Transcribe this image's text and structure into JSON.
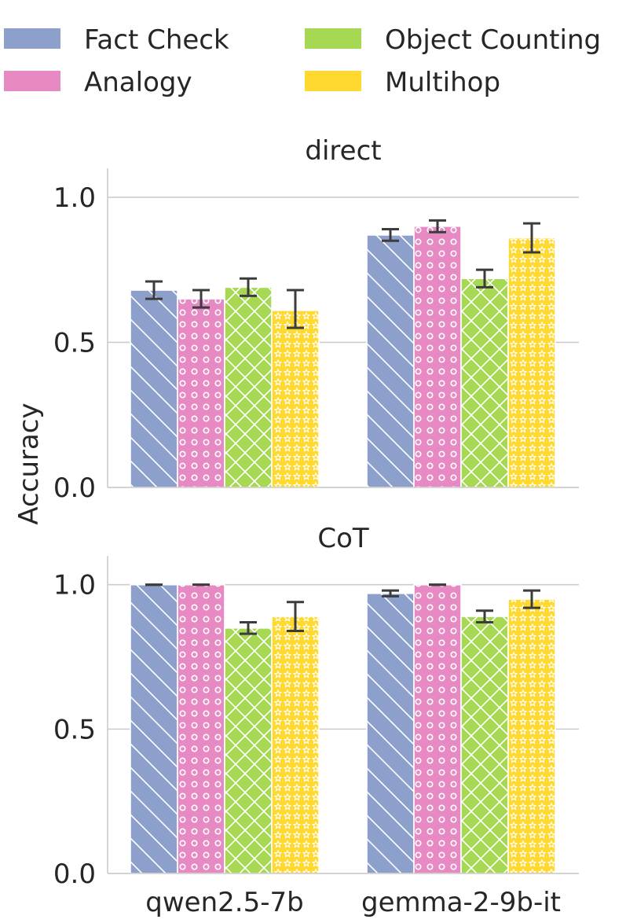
{
  "chart_data": [
    {
      "type": "bar",
      "title": "direct",
      "ylabel": "Accuracy",
      "xlabel": "",
      "ylim": [
        0,
        1.1
      ],
      "yticks": [
        "0.0",
        "0.5",
        "1.0"
      ],
      "grid": true,
      "legend_position": "top",
      "categories": [
        "qwen2.5-7b",
        "gemma-2-9b-it"
      ],
      "series": [
        {
          "name": "Fact Check",
          "color": "#8da0cb",
          "hatch": "diagonal",
          "values": [
            0.68,
            0.87
          ],
          "err_low": [
            0.65,
            0.85
          ],
          "err_high": [
            0.71,
            0.89
          ]
        },
        {
          "name": "Analogy",
          "color": "#e78ac3",
          "hatch": "circles",
          "values": [
            0.65,
            0.9
          ],
          "err_low": [
            0.62,
            0.88
          ],
          "err_high": [
            0.68,
            0.92
          ]
        },
        {
          "name": "Object Counting",
          "color": "#a6d854",
          "hatch": "crosshatch",
          "values": [
            0.69,
            0.72
          ],
          "err_low": [
            0.66,
            0.69
          ],
          "err_high": [
            0.72,
            0.75
          ]
        },
        {
          "name": "Multihop",
          "color": "#ffd92f",
          "hatch": "stars",
          "values": [
            0.61,
            0.86
          ],
          "err_low": [
            0.55,
            0.81
          ],
          "err_high": [
            0.68,
            0.91
          ]
        }
      ]
    },
    {
      "type": "bar",
      "title": "CoT",
      "ylabel": "Accuracy",
      "xlabel": "",
      "ylim": [
        0,
        1.1
      ],
      "yticks": [
        "0.0",
        "0.5",
        "1.0"
      ],
      "grid": true,
      "categories": [
        "qwen2.5-7b",
        "gemma-2-9b-it"
      ],
      "series": [
        {
          "name": "Fact Check",
          "color": "#8da0cb",
          "hatch": "diagonal",
          "values": [
            1.0,
            0.97
          ],
          "err_low": [
            1.0,
            0.96
          ],
          "err_high": [
            1.0,
            0.98
          ]
        },
        {
          "name": "Analogy",
          "color": "#e78ac3",
          "hatch": "circles",
          "values": [
            1.0,
            1.0
          ],
          "err_low": [
            1.0,
            1.0
          ],
          "err_high": [
            1.0,
            1.0
          ]
        },
        {
          "name": "Object Counting",
          "color": "#a6d854",
          "hatch": "crosshatch",
          "values": [
            0.85,
            0.89
          ],
          "err_low": [
            0.83,
            0.87
          ],
          "err_high": [
            0.87,
            0.91
          ]
        },
        {
          "name": "Multihop",
          "color": "#ffd92f",
          "hatch": "stars",
          "values": [
            0.89,
            0.95
          ],
          "err_low": [
            0.84,
            0.92
          ],
          "err_high": [
            0.94,
            0.98
          ]
        }
      ]
    }
  ]
}
